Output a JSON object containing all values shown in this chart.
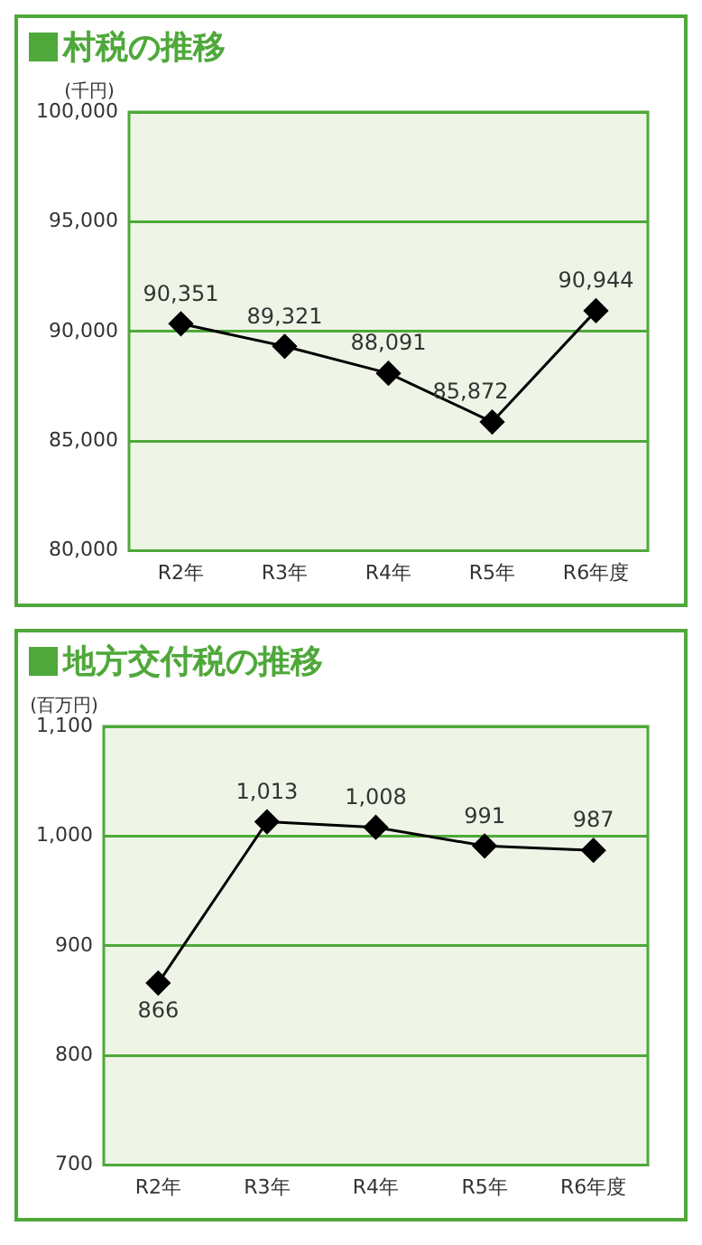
{
  "chart_data": [
    {
      "type": "line",
      "title": "村税の推移",
      "ylabel": "(千円)",
      "categories": [
        "R2年",
        "R3年",
        "R4年",
        "R5年",
        "R6年度"
      ],
      "series": [
        {
          "color": "#000000",
          "values": [
            90351,
            89321,
            88091,
            85872,
            90944
          ],
          "value_labels": [
            "90,351",
            "89,321",
            "88,091",
            "85,872",
            "90,944"
          ]
        }
      ],
      "ylim": [
        80000,
        100000
      ],
      "yticks": [
        {
          "value": 80000,
          "label": "80,000"
        },
        {
          "value": 85000,
          "label": "85,000"
        },
        {
          "value": 90000,
          "label": "90,000"
        },
        {
          "value": 95000,
          "label": "95,000"
        },
        {
          "value": 100000,
          "label": "100,000"
        }
      ],
      "grid": "y",
      "marker": "diamond",
      "line_style": "solid",
      "legend": false
    },
    {
      "type": "line",
      "title": "地方交付税の推移",
      "ylabel": "(百万円)",
      "categories": [
        "R2年",
        "R3年",
        "R4年",
        "R5年",
        "R6年度"
      ],
      "series": [
        {
          "color": "#000000",
          "values": [
            866,
            1013,
            1008,
            991,
            987
          ],
          "value_labels": [
            "866",
            "1,013",
            "1,008",
            "991",
            "987"
          ]
        }
      ],
      "ylim": [
        700,
        1100
      ],
      "yticks": [
        {
          "value": 700,
          "label": "700"
        },
        {
          "value": 800,
          "label": "800"
        },
        {
          "value": 900,
          "label": "900"
        },
        {
          "value": 1000,
          "label": "1,000"
        },
        {
          "value": 1100,
          "label": "1,100"
        }
      ],
      "grid": "y",
      "marker": "diamond",
      "line_style": "solid",
      "legend": false
    }
  ]
}
